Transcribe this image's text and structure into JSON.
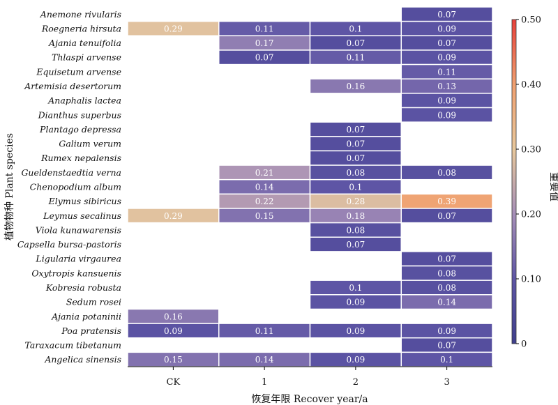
{
  "chart_data": {
    "type": "heatmap",
    "xlabel": "恢复年限 Recover year/a",
    "ylabel": "植物物种 Plant species",
    "colorbar_label": "重要值",
    "x_categories": [
      "CK",
      "1",
      "2",
      "3"
    ],
    "y_categories": [
      "Anemone rivularis",
      "Roegneria hirsuta",
      "Ajania tenuifolia",
      "Thlaspi arvense",
      "Equisetum arvense",
      "Artemisia desertorum",
      "Anaphalis lactea",
      "Dianthus superbus",
      "Plantago depressa",
      "Galium verum",
      "Rumex nepalensis",
      "Gueldenstaedtia verna",
      "Chenopodium album",
      "Elymus sibiricus",
      "Leymus secalinus",
      "Viola kunawarensis",
      "Capsella bursa-pastoris",
      "Ligularia virgaurea",
      "Oxytropis kansuenis",
      "Kobresia robusta",
      "Sedum rosei",
      "Ajania potaninii",
      "Poa pratensis",
      "Taraxacum tibetanum",
      "Angelica sinensis"
    ],
    "values": [
      [
        null,
        null,
        null,
        0.07
      ],
      [
        0.29,
        0.11,
        0.1,
        0.09
      ],
      [
        null,
        0.17,
        0.07,
        0.07
      ],
      [
        null,
        0.07,
        0.11,
        0.09
      ],
      [
        null,
        null,
        null,
        0.11
      ],
      [
        null,
        null,
        0.16,
        0.13
      ],
      [
        null,
        null,
        null,
        0.09
      ],
      [
        null,
        null,
        null,
        0.09
      ],
      [
        null,
        null,
        0.07,
        null
      ],
      [
        null,
        null,
        0.07,
        null
      ],
      [
        null,
        null,
        0.07,
        null
      ],
      [
        null,
        0.21,
        0.08,
        0.08
      ],
      [
        null,
        0.14,
        0.1,
        null
      ],
      [
        null,
        0.22,
        0.28,
        0.39
      ],
      [
        0.29,
        0.15,
        0.18,
        0.07
      ],
      [
        null,
        null,
        0.08,
        null
      ],
      [
        null,
        null,
        0.07,
        null
      ],
      [
        null,
        null,
        null,
        0.07
      ],
      [
        null,
        null,
        null,
        0.08
      ],
      [
        null,
        null,
        0.1,
        0.08
      ],
      [
        null,
        null,
        0.09,
        0.14
      ],
      [
        0.16,
        null,
        null,
        null
      ],
      [
        0.09,
        0.11,
        0.09,
        0.09
      ],
      [
        null,
        null,
        null,
        0.07
      ],
      [
        0.15,
        0.14,
        0.09,
        0.1
      ]
    ],
    "colorbar_range": [
      0,
      0.5
    ],
    "colorbar_ticks": [
      "0",
      "0.10",
      "0.20",
      "0.30",
      "0.40",
      "0.50"
    ],
    "colormap": [
      "#3f3f8c",
      "#5e55a5",
      "#a68fb8",
      "#e8c89c",
      "#f0a070",
      "#e8403a"
    ]
  }
}
